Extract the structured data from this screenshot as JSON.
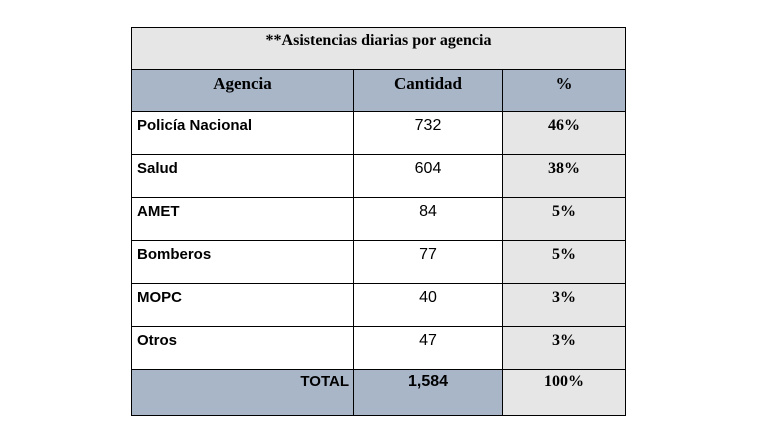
{
  "table": {
    "title": "**Asistencias diarias por agencia",
    "headers": {
      "agency": "Agencia",
      "quantity": "Cantidad",
      "percent": "%"
    },
    "rows": [
      {
        "agency": "Policía Nacional",
        "quantity": "732",
        "percent": "46%"
      },
      {
        "agency": "Salud",
        "quantity": "604",
        "percent": "38%"
      },
      {
        "agency": "AMET",
        "quantity": "84",
        "percent": "5%"
      },
      {
        "agency": "Bomberos",
        "quantity": "77",
        "percent": "5%"
      },
      {
        "agency": "MOPC",
        "quantity": "40",
        "percent": "3%"
      },
      {
        "agency": "Otros",
        "quantity": "47",
        "percent": "3%"
      }
    ],
    "total": {
      "label": "TOTAL",
      "quantity": "1,584",
      "percent": "100%"
    },
    "colors": {
      "header_fill": "#a8b6c8",
      "shaded_fill": "#e6e6e6"
    }
  }
}
